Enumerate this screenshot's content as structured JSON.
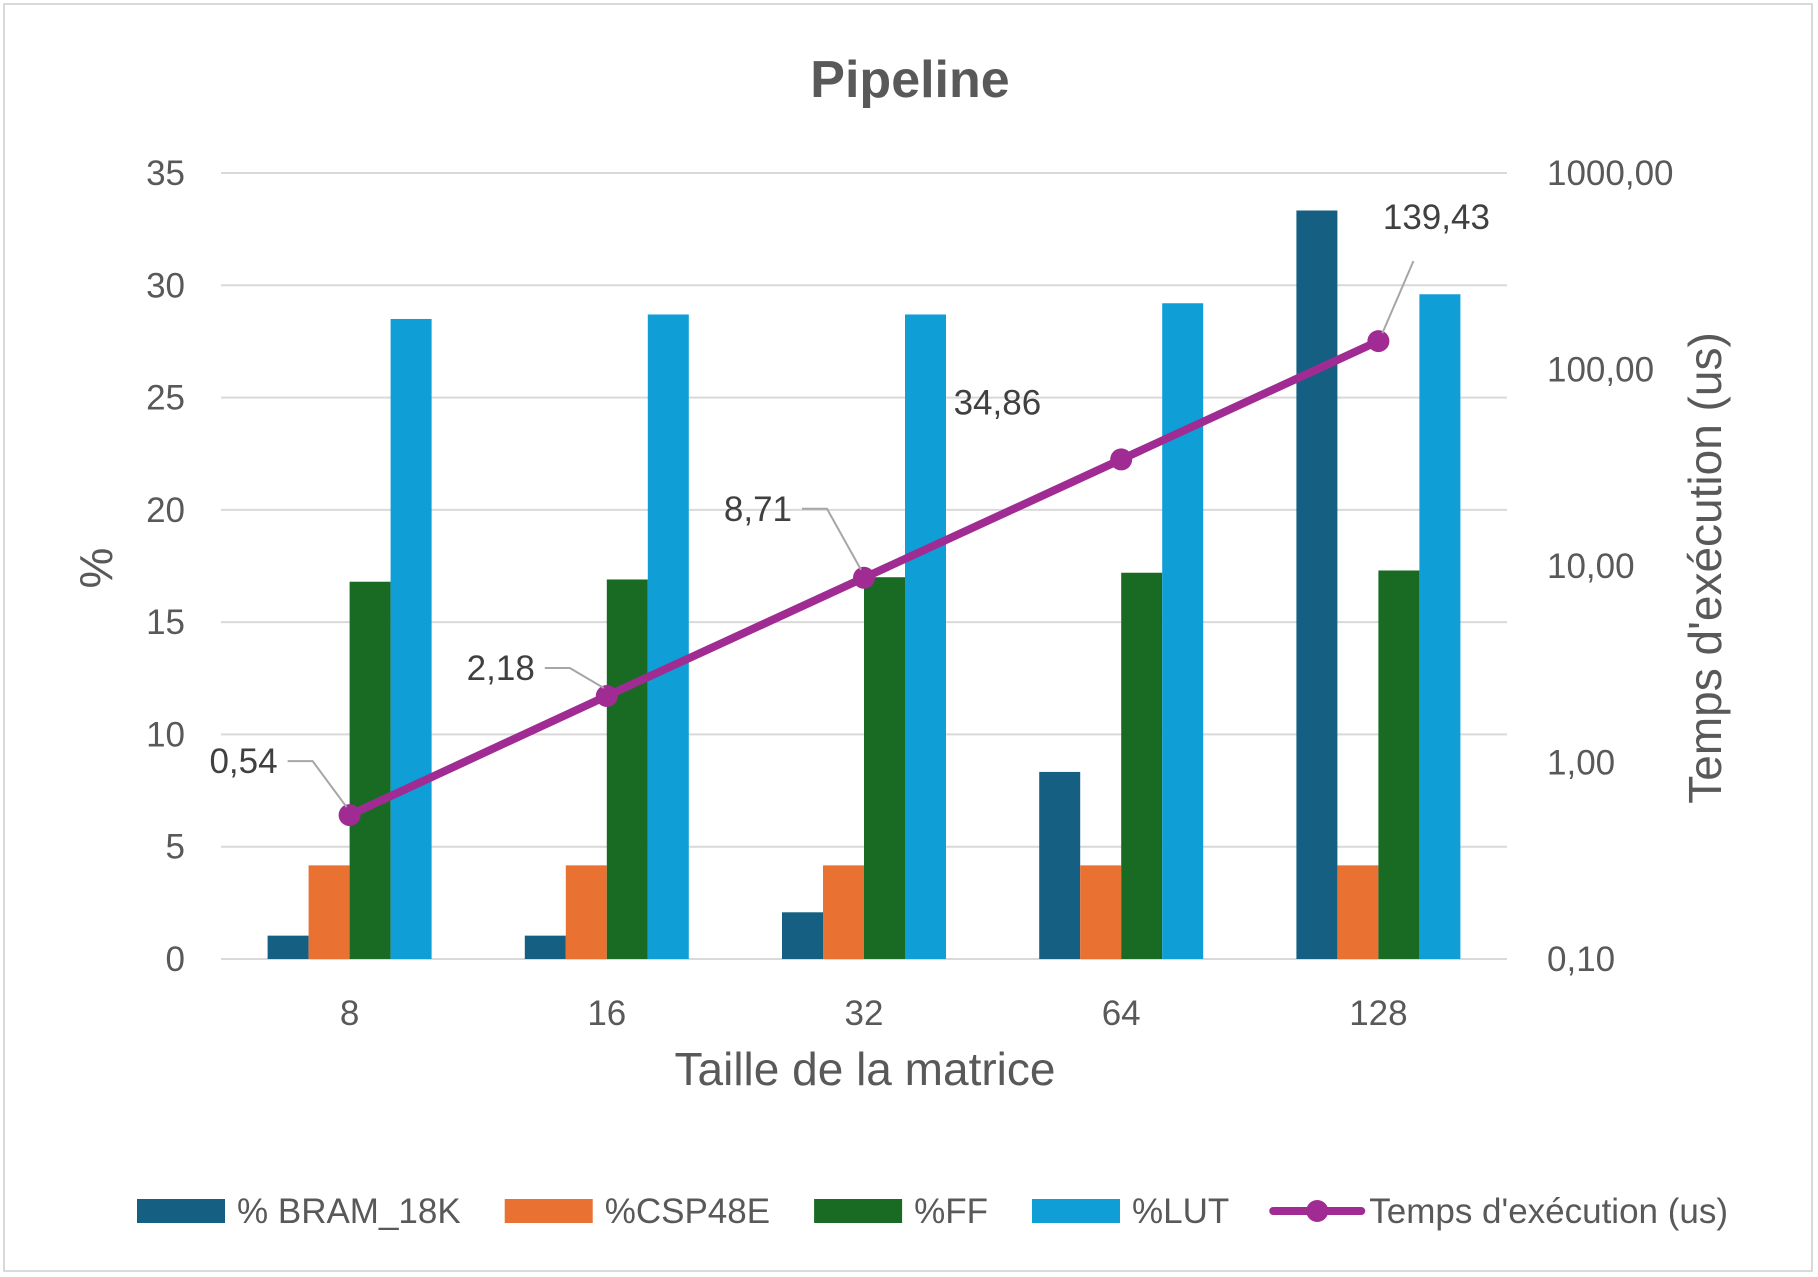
{
  "chart_data": {
    "type": "bar",
    "title": "Pipeline",
    "xlabel": "Taille de la matrice",
    "ylabel": "%",
    "y2label": "Temps d'exécution (us)",
    "categories": [
      "8",
      "16",
      "32",
      "64",
      "128"
    ],
    "ylim": [
      0,
      35
    ],
    "yticks": [
      "0",
      "5",
      "10",
      "15",
      "20",
      "25",
      "30",
      "35"
    ],
    "y2scale": "log",
    "y2lim": [
      0.1,
      1000
    ],
    "y2ticks": [
      "0,10",
      "1,00",
      "10,00",
      "100,00",
      "1000,00"
    ],
    "grid": true,
    "legend_position": "bottom",
    "series": [
      {
        "name": "% BRAM_18K",
        "type": "bar",
        "axis": "left",
        "color": "#156082",
        "values": [
          1.04,
          1.04,
          2.08,
          8.33,
          33.33
        ]
      },
      {
        "name": "%CSP48E",
        "type": "bar",
        "axis": "left",
        "color": "#e97132",
        "values": [
          4.17,
          4.17,
          4.17,
          4.17,
          4.17
        ]
      },
      {
        "name": "%FF",
        "type": "bar",
        "axis": "left",
        "color": "#196b24",
        "values": [
          16.8,
          16.9,
          17.0,
          17.2,
          17.3
        ]
      },
      {
        "name": "%LUT",
        "type": "bar",
        "axis": "left",
        "color": "#0f9ed5",
        "values": [
          28.5,
          28.7,
          28.7,
          29.2,
          29.6
        ]
      },
      {
        "name": "Temps d'exécution (us)",
        "type": "line",
        "axis": "right",
        "color": "#a02b93",
        "values": [
          0.54,
          2.18,
          8.71,
          34.86,
          139.43
        ],
        "labels": [
          "0,54",
          "2,18",
          "8,71",
          "34,86",
          "139,43"
        ]
      }
    ]
  }
}
